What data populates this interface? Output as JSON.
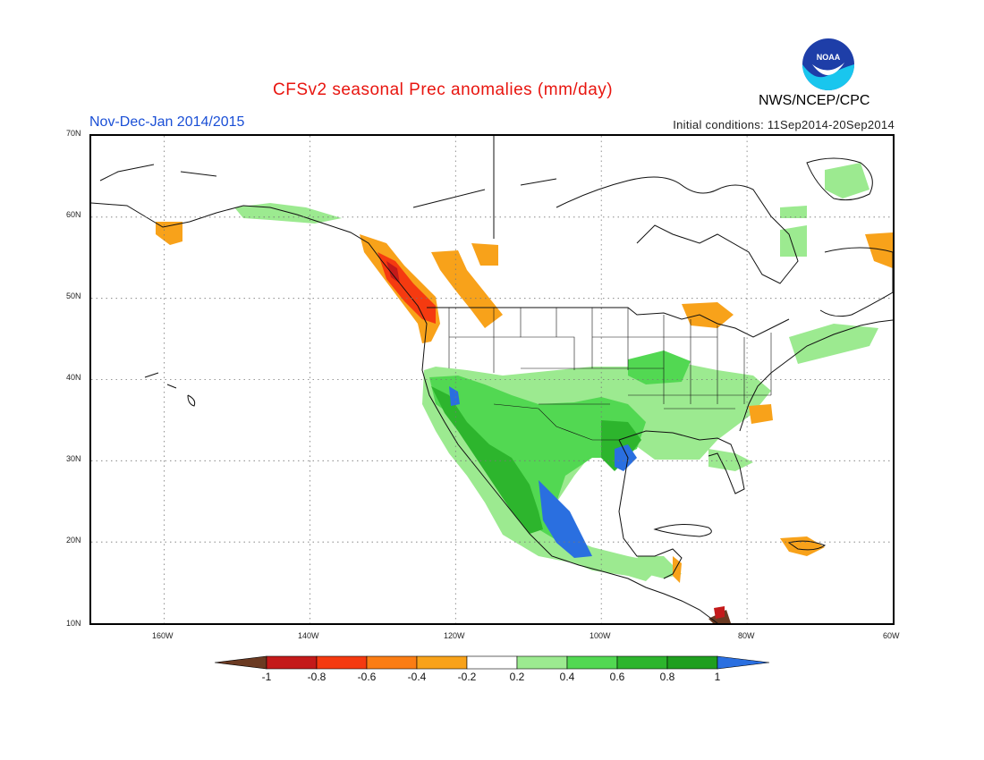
{
  "header": {
    "title": "CFSv2 seasonal Prec anomalies (mm/day)",
    "period": "Nov-Dec-Jan 2014/2015",
    "initial_conditions": "Initial conditions: 11Sep2014-20Sep2014",
    "agency": "NWS/NCEP/CPC",
    "logo_text": "NOAA"
  },
  "map": {
    "region": "North America",
    "lon_range": [
      -170,
      -60
    ],
    "lat_range": [
      10,
      70
    ],
    "lat_labels": [
      "70N",
      "60N",
      "50N",
      "40N",
      "30N",
      "20N",
      "10N"
    ],
    "lon_labels": [
      "160W",
      "140W",
      "120W",
      "100W",
      "80W",
      "60W"
    ],
    "grid": "dotted"
  },
  "colorbar": {
    "tick_labels": [
      "-1",
      "-0.8",
      "-0.6",
      "-0.4",
      "-0.2",
      "0.2",
      "0.4",
      "0.6",
      "0.8",
      "1"
    ],
    "colors": [
      "#6b3a22",
      "#c41a1a",
      "#f53a10",
      "#fb7d14",
      "#f8a21a",
      "#ffffff",
      "#9cea90",
      "#52d852",
      "#2db52d",
      "#1f9f1f",
      "#2a6fe0"
    ]
  }
}
